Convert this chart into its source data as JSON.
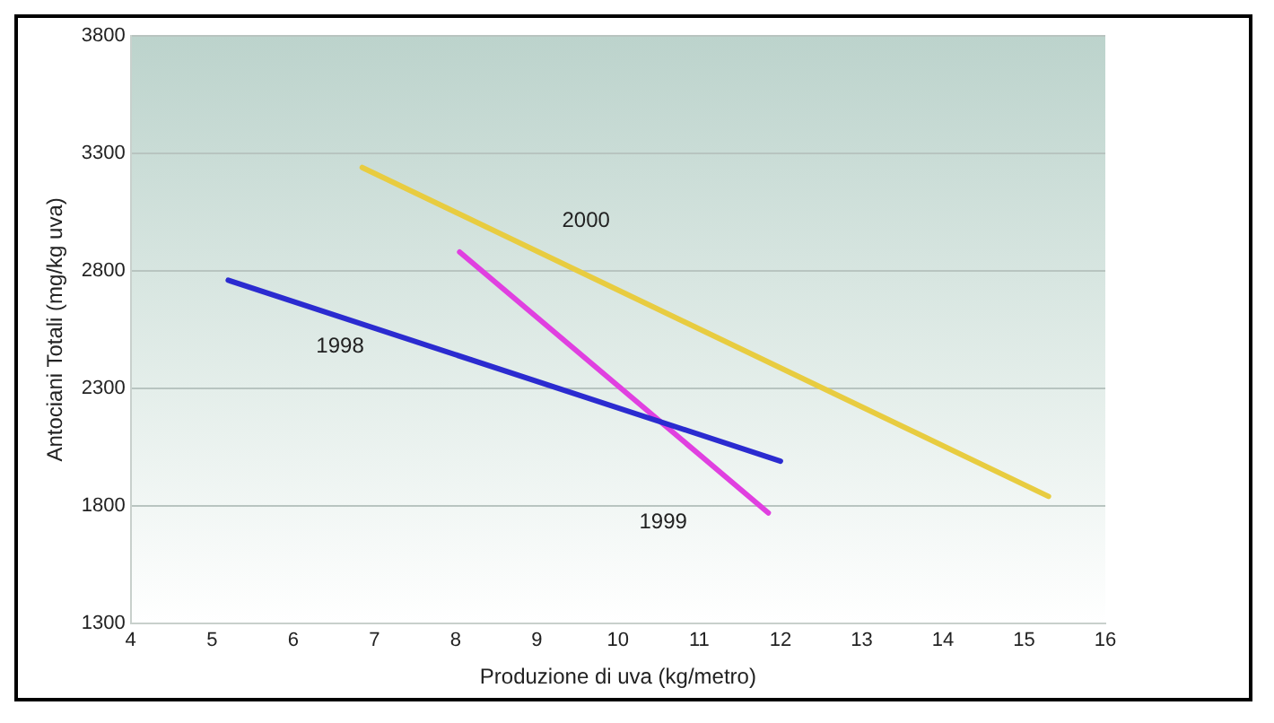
{
  "chart_data": {
    "type": "line",
    "xlabel": "Produzione di uva (kg/metro)",
    "ylabel": "Antociani Totali (mg/kg uva)",
    "xlim": [
      4,
      16
    ],
    "xticks": [
      4,
      5,
      6,
      7,
      8,
      9,
      10,
      11,
      12,
      13,
      14,
      15,
      16
    ],
    "ylim": [
      1300,
      3800
    ],
    "yticks": [
      1300,
      1800,
      2300,
      2800,
      3300,
      3800
    ],
    "grid": "y",
    "marker": "none",
    "series": [
      {
        "name": "1998",
        "color": "#2b2bd0",
        "x": [
          5.2,
          12
        ],
        "values": [
          2760,
          1990
        ]
      },
      {
        "name": "1999",
        "color": "#e040e0",
        "x": [
          8.05,
          11.85
        ],
        "values": [
          2880,
          1770
        ]
      },
      {
        "name": "2000",
        "color": "#e8cc40",
        "x": [
          6.85,
          15.3
        ],
        "values": [
          3240,
          1840
        ]
      }
    ]
  }
}
